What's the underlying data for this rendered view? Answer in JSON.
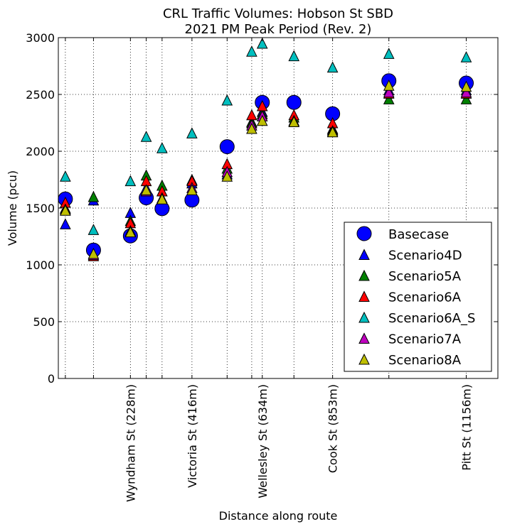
{
  "chart_data": {
    "type": "scatter",
    "title_line1": "CRL Traffic Volumes: Hobson St SBD",
    "title_line2": "2021 PM Peak Period (Rev. 2)",
    "xlabel": "Distance along route",
    "ylabel": "Volume (pcu)",
    "ylim": [
      0,
      3000
    ],
    "yticks": [
      0,
      500,
      1000,
      1500,
      2000,
      2500,
      3000
    ],
    "ytick_labels": [
      "0",
      "500",
      "1000",
      "1500",
      "2000",
      "2500",
      "3000"
    ],
    "xlim": [
      -20,
      1230
    ],
    "x": [
      0,
      80,
      185,
      230,
      275,
      360,
      460,
      530,
      560,
      650,
      760,
      920,
      1140
    ],
    "xticks": [
      185,
      360,
      560,
      760,
      1140
    ],
    "xtick_labels": [
      "Wyndham St (228m)",
      "Victoria St (416m)",
      "Wellesley St (634m)",
      "Cook St (853m)",
      "Pitt St (1156m)"
    ],
    "grid": true,
    "legend_position": "lower-right",
    "series": [
      {
        "name": "Basecase",
        "marker": "circle",
        "color": "#0000ff",
        "values": [
          1580,
          1130,
          1255,
          1590,
          1495,
          1570,
          2040,
          null,
          2430,
          2430,
          2330,
          2620,
          2600
        ]
      },
      {
        "name": "Scenario4D",
        "marker": "triangle",
        "color": "#0000ff",
        "values": [
          1360,
          1570,
          1460,
          1680,
          1650,
          1720,
          1800,
          2260,
          2350,
          2260,
          2200,
          2540,
          2540
        ]
      },
      {
        "name": "Scenario5A",
        "marker": "triangle",
        "color": "#008000",
        "values": [
          1500,
          1600,
          1390,
          1790,
          1700,
          1750,
          1850,
          2250,
          2330,
          2300,
          2190,
          2460,
          2460
        ]
      },
      {
        "name": "Scenario6A",
        "marker": "triangle",
        "color": "#ff0000",
        "values": [
          1550,
          1080,
          1370,
          1740,
          1650,
          1740,
          1890,
          2320,
          2400,
          2320,
          2250,
          2510,
          2510
        ]
      },
      {
        "name": "Scenario6A_S",
        "marker": "triangle",
        "color": "#00bfbf",
        "values": [
          1780,
          1310,
          1740,
          2130,
          2030,
          2160,
          2450,
          2880,
          2950,
          2840,
          2740,
          2860,
          2830
        ]
      },
      {
        "name": "Scenario7A",
        "marker": "triangle",
        "color": "#bf00bf",
        "values": [
          1490,
          1090,
          1300,
          1650,
          1590,
          1680,
          1820,
          2230,
          2310,
          2270,
          2180,
          2520,
          2520
        ]
      },
      {
        "name": "Scenario8A",
        "marker": "triangle",
        "color": "#bfbf00",
        "values": [
          1480,
          1100,
          1290,
          1660,
          1580,
          1660,
          1780,
          2200,
          2270,
          2260,
          2170,
          2580,
          2570
        ]
      }
    ]
  }
}
